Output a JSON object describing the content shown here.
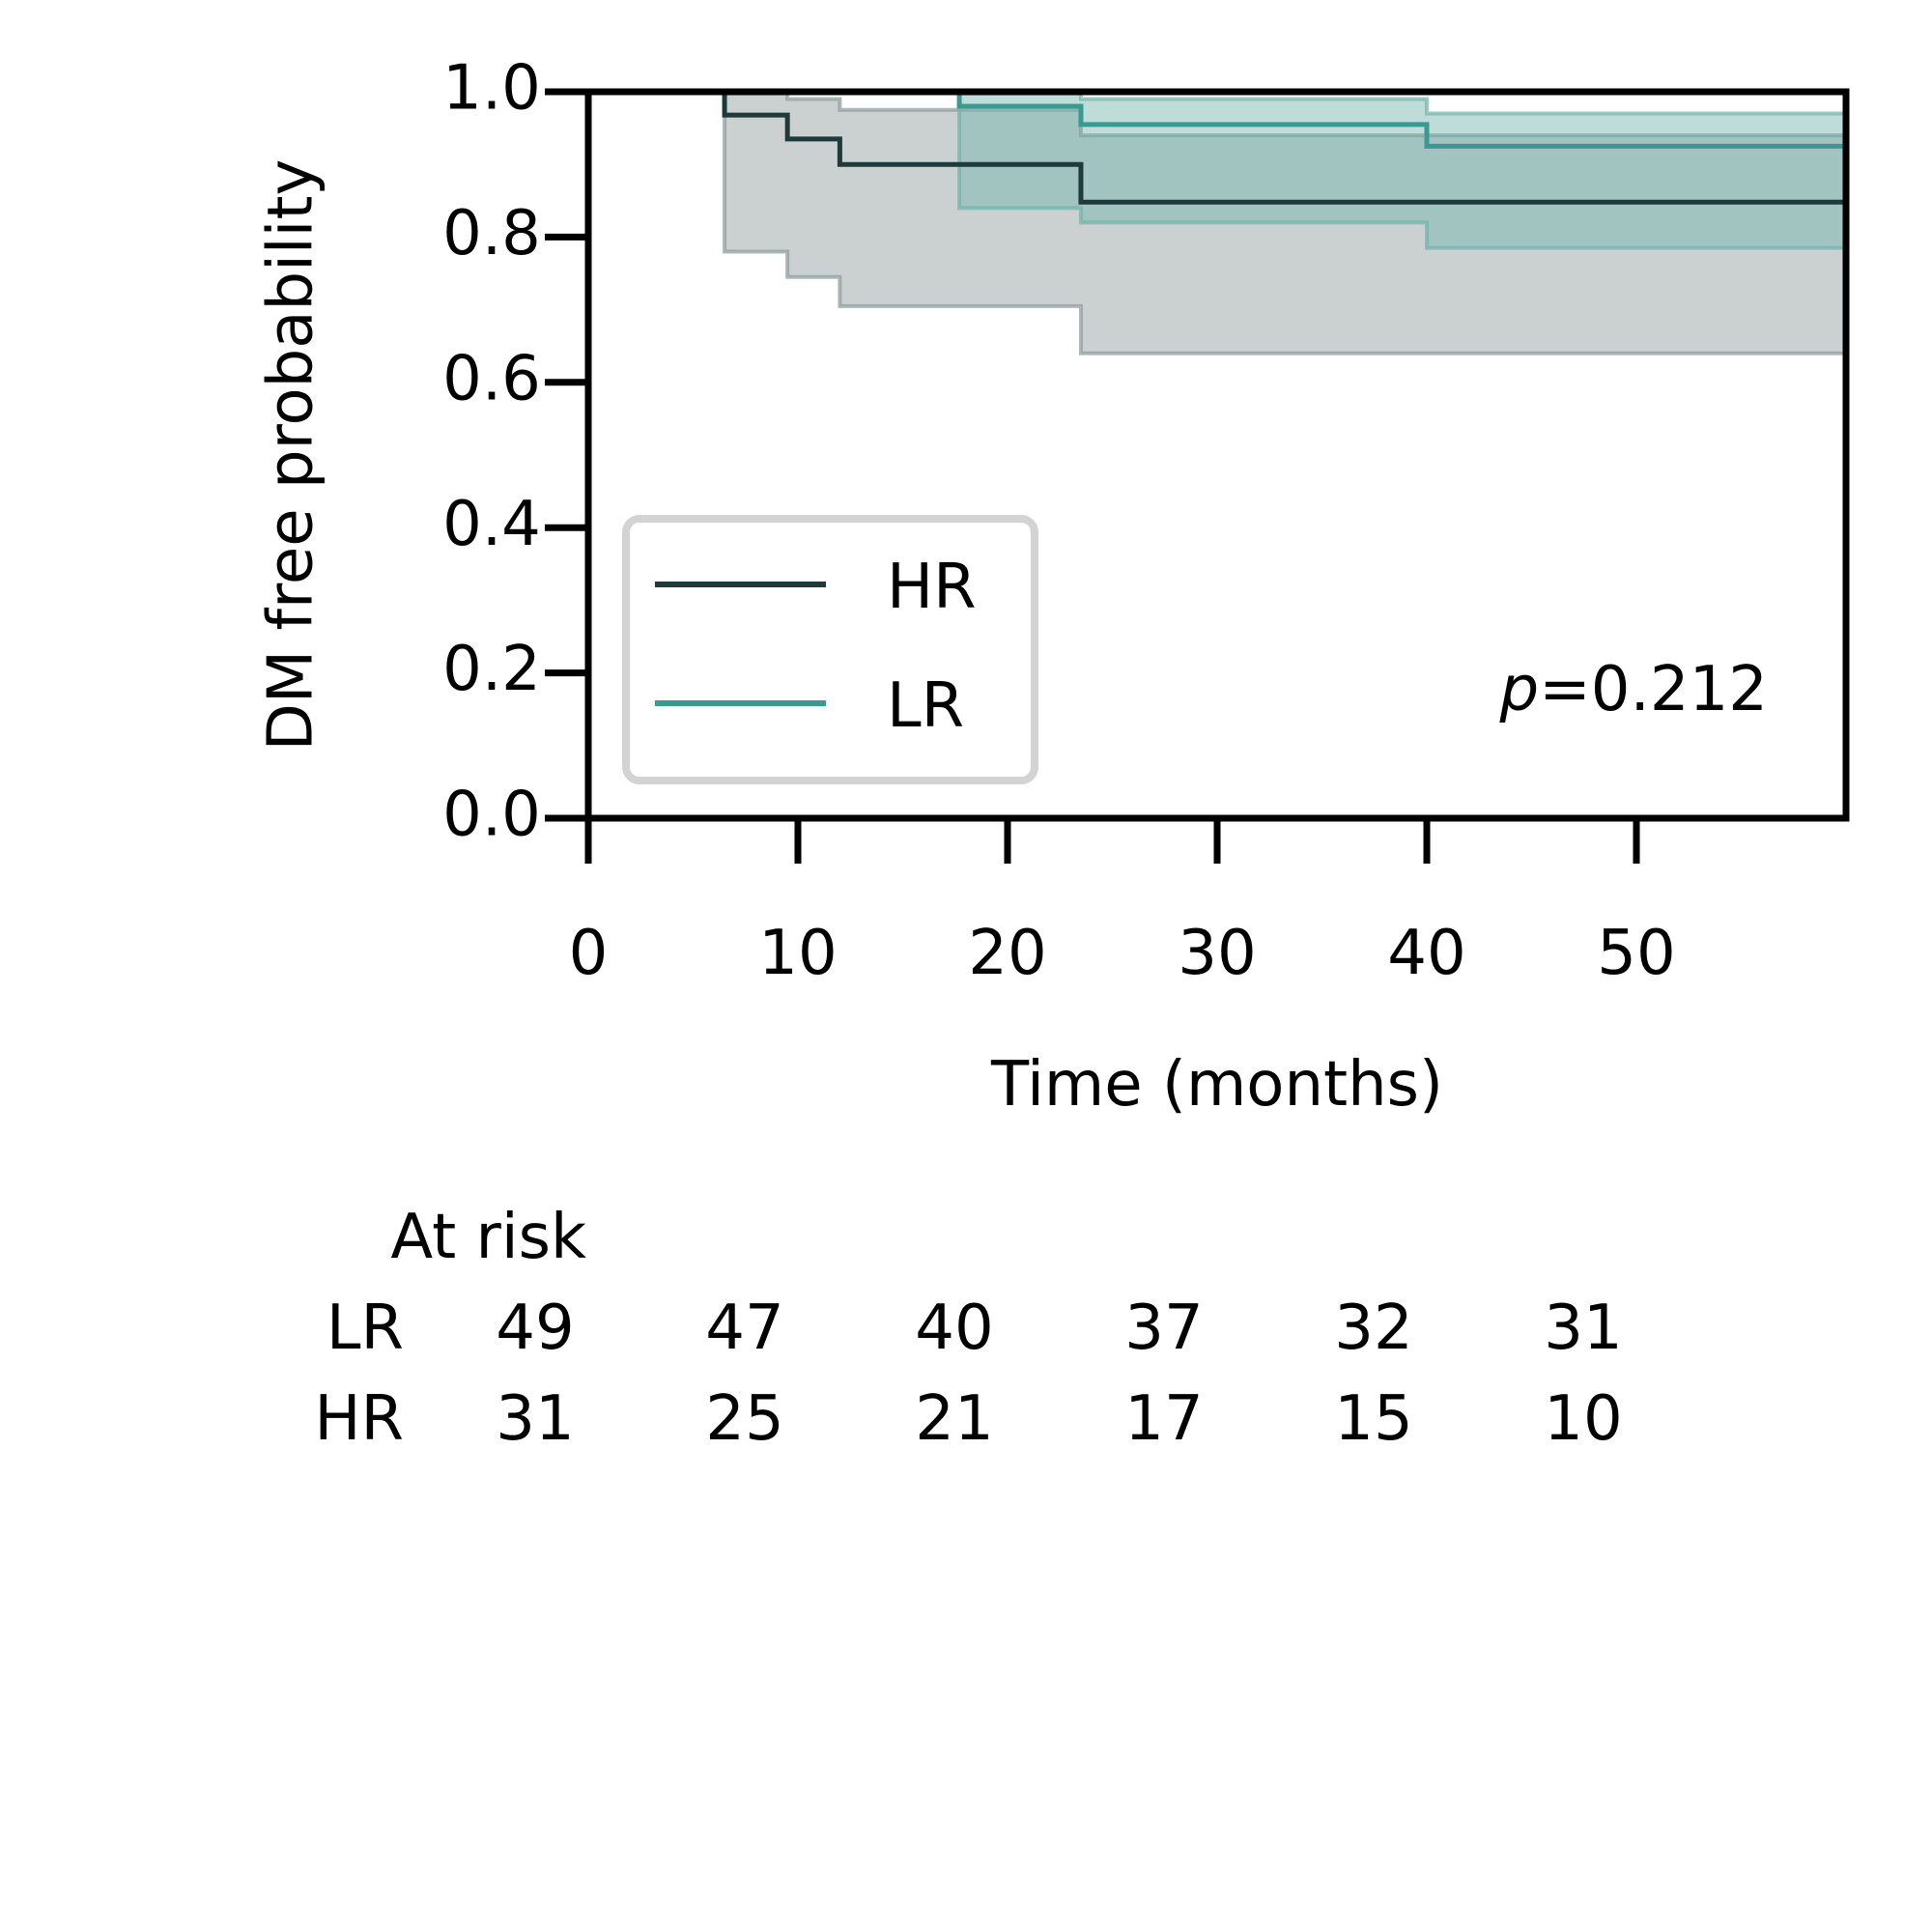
{
  "chart_data": {
    "type": "line",
    "subtype": "kaplan-meier",
    "title": "",
    "xlabel": "Time (months)",
    "ylabel": "DM free probability",
    "xlim": [
      0,
      60
    ],
    "ylim": [
      0.0,
      1.0
    ],
    "xticks": [
      0,
      10,
      20,
      30,
      40,
      50
    ],
    "yticks": [
      "0.0",
      "0.2",
      "0.4",
      "0.6",
      "0.8",
      "1.0"
    ],
    "grid": false,
    "legend_position": "lower-left",
    "annotation": {
      "italic": "p",
      "rest": "=0.212"
    },
    "series": [
      {
        "name": "HR",
        "color": "#1f3a3a",
        "band_color": "#8c9a9a",
        "x": [
          0,
          6.5,
          9.5,
          12,
          23.5,
          60
        ],
        "y": [
          1.0,
          0.968,
          0.935,
          0.9,
          0.848,
          0.848
        ],
        "ci_lower": [
          1.0,
          0.78,
          0.745,
          0.705,
          0.64,
          0.64
        ],
        "ci_upper": [
          1.0,
          1.0,
          0.99,
          0.975,
          0.94,
          0.94
        ]
      },
      {
        "name": "LR",
        "color": "#3a9a91",
        "band_color": "#6fb3ab",
        "x": [
          0,
          17.7,
          23.5,
          40,
          60
        ],
        "y": [
          1.0,
          0.98,
          0.955,
          0.925,
          0.925
        ],
        "ci_lower": [
          1.0,
          0.84,
          0.82,
          0.785,
          0.785
        ],
        "ci_upper": [
          1.0,
          1.0,
          0.99,
          0.97,
          0.97
        ]
      }
    ],
    "at_risk": {
      "title": "At risk",
      "times": [
        0,
        10,
        20,
        30,
        40,
        50
      ],
      "rows": [
        {
          "label": "LR",
          "values": [
            "49",
            "47",
            "40",
            "37",
            "32",
            "31"
          ]
        },
        {
          "label": "HR",
          "values": [
            "31",
            "25",
            "21",
            "17",
            "15",
            "10"
          ]
        }
      ]
    }
  }
}
